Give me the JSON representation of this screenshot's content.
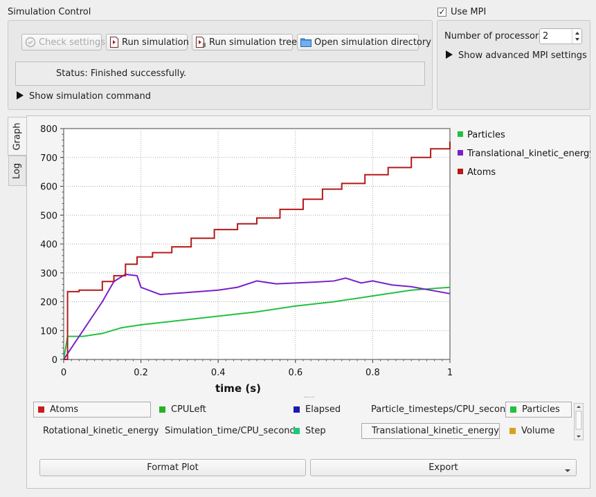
{
  "simulation_control": {
    "title": "Simulation Control",
    "check_settings_label": "Check settings",
    "run_simulation_label": "Run simulation",
    "run_simulation_tree_label": "Run simulation tree",
    "open_directory_label": "Open simulation directory",
    "status_text": "Status: Finished successfully.",
    "show_command_label": "Show simulation command"
  },
  "mpi": {
    "use_mpi_label": "Use MPI",
    "use_mpi_checked": true,
    "processors_label": "Number of processors:",
    "processors_value": "2",
    "show_advanced_label": "Show advanced MPI settings"
  },
  "tabs": {
    "graph_label": "Graph",
    "log_label": "Log"
  },
  "chart_data": {
    "type": "line",
    "xlabel": "time (s)",
    "ylabel": "",
    "xlim": [
      0,
      1
    ],
    "ylim": [
      0,
      800
    ],
    "x_ticks": [
      "0",
      "0.2",
      "0.4",
      "0.6",
      "0.8",
      "1"
    ],
    "y_ticks": [
      "0",
      "100",
      "200",
      "300",
      "400",
      "500",
      "600",
      "700",
      "800"
    ],
    "grid": true,
    "legend_placement": "right",
    "series": [
      {
        "name": "Particles",
        "color": "#22c040",
        "x": [
          0,
          0.01,
          0.05,
          0.1,
          0.15,
          0.2,
          0.3,
          0.4,
          0.5,
          0.6,
          0.7,
          0.8,
          0.9,
          1.0
        ],
        "y": [
          0,
          80,
          80,
          90,
          110,
          120,
          135,
          150,
          165,
          185,
          200,
          220,
          240,
          250
        ]
      },
      {
        "name": "Translational_kinetic_energy",
        "color": "#7a1fc8",
        "x": [
          0,
          0.03,
          0.06,
          0.1,
          0.13,
          0.16,
          0.19,
          0.2,
          0.25,
          0.3,
          0.35,
          0.4,
          0.45,
          0.5,
          0.55,
          0.6,
          0.65,
          0.7,
          0.73,
          0.77,
          0.8,
          0.85,
          0.9,
          0.95,
          1.0
        ],
        "y": [
          0,
          60,
          120,
          200,
          270,
          295,
          290,
          250,
          225,
          230,
          235,
          240,
          250,
          272,
          262,
          265,
          268,
          272,
          282,
          265,
          272,
          258,
          252,
          240,
          228
        ]
      },
      {
        "name": "Atoms",
        "color": "#b41818",
        "x": [
          0,
          0.01,
          0.04,
          0.1,
          0.13,
          0.16,
          0.19,
          0.23,
          0.28,
          0.33,
          0.39,
          0.45,
          0.5,
          0.56,
          0.62,
          0.67,
          0.72,
          0.78,
          0.84,
          0.9,
          0.95,
          1.0
        ],
        "y": [
          0,
          235,
          240,
          270,
          290,
          330,
          355,
          370,
          390,
          420,
          450,
          470,
          490,
          520,
          555,
          590,
          610,
          640,
          665,
          700,
          730,
          755
        ]
      }
    ]
  },
  "variables": [
    {
      "name": "Atoms",
      "color": "#c81e1e",
      "selected": true
    },
    {
      "name": "CPULeft",
      "color": "#22b422",
      "selected": false
    },
    {
      "name": "Elapsed",
      "color": "#1a1ab4",
      "selected": false
    },
    {
      "name": "Particle_timesteps/CPU_second",
      "color": "#d8401e",
      "selected": false
    },
    {
      "name": "Particles",
      "color": "#22c040",
      "selected": true
    },
    {
      "name": "Rotational_kinetic_energy",
      "color": "#6a22c8",
      "selected": false
    },
    {
      "name": "Simulation_time/CPU_second",
      "color": "#c86a1e",
      "selected": false
    },
    {
      "name": "Step",
      "color": "#1ec87a",
      "selected": false
    },
    {
      "name": "Translational_kinetic_energy",
      "color": "#8a1ec8",
      "selected": true
    },
    {
      "name": "Volume",
      "color": "#d8a01e",
      "selected": false
    }
  ],
  "bottom_buttons": {
    "format_plot_label": "Format Plot",
    "export_label": "Export"
  }
}
